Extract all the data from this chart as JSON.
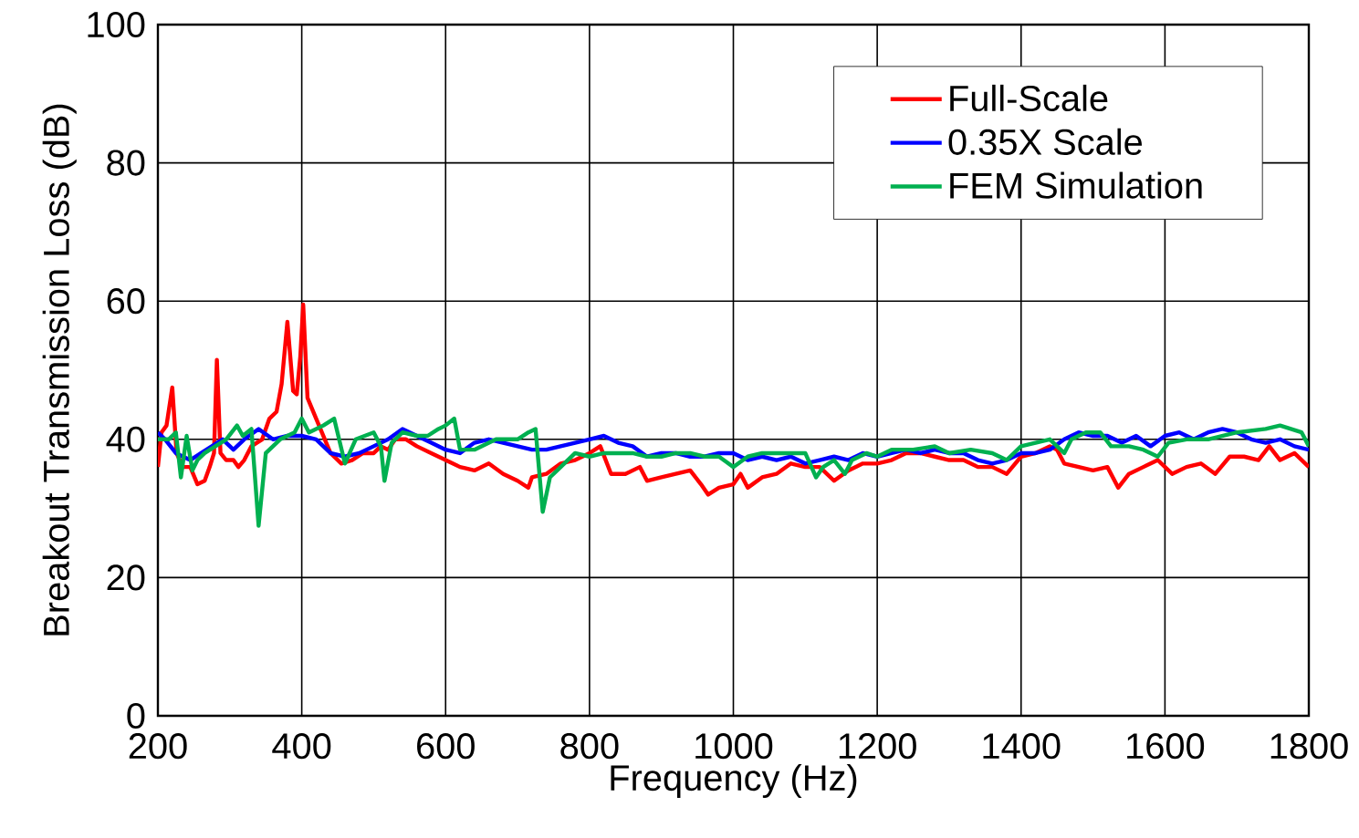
{
  "chart_data": {
    "type": "line",
    "xlabel": "Frequency (Hz)",
    "ylabel": "Breakout Transmission Loss (dB)",
    "xlim": [
      200,
      1800
    ],
    "ylim": [
      0,
      100
    ],
    "xticks": [
      200,
      400,
      600,
      800,
      1000,
      1200,
      1400,
      1600,
      1800
    ],
    "yticks": [
      0,
      20,
      40,
      60,
      80,
      100
    ],
    "grid": true,
    "legend": "top right",
    "marker": "none",
    "line_style": "solid",
    "series": [
      {
        "name": "Full-Scale",
        "color": "#ff0000",
        "x": [
          200,
          205,
          212,
          220,
          226,
          235,
          245,
          255,
          265,
          272,
          278,
          282,
          287,
          295,
          305,
          312,
          320,
          330,
          345,
          355,
          365,
          372,
          380,
          388,
          393,
          398,
          402,
          408,
          420,
          440,
          455,
          470,
          485,
          500,
          510,
          520,
          530,
          545,
          560,
          580,
          600,
          620,
          640,
          660,
          680,
          700,
          715,
          720,
          740,
          760,
          780,
          800,
          815,
          830,
          850,
          870,
          880,
          900,
          920,
          940,
          955,
          965,
          980,
          1000,
          1010,
          1020,
          1040,
          1060,
          1080,
          1100,
          1120,
          1140,
          1160,
          1180,
          1200,
          1220,
          1240,
          1260,
          1280,
          1300,
          1320,
          1340,
          1360,
          1380,
          1400,
          1420,
          1440,
          1450,
          1460,
          1480,
          1500,
          1520,
          1535,
          1550,
          1570,
          1590,
          1610,
          1630,
          1650,
          1670,
          1690,
          1710,
          1730,
          1745,
          1760,
          1780,
          1800
        ],
        "values": [
          36,
          41,
          42,
          47.5,
          38,
          36,
          36,
          33.5,
          34,
          36,
          38,
          51.5,
          38,
          37,
          37,
          36,
          37,
          39,
          40,
          43,
          44,
          48,
          57,
          47,
          46.5,
          52,
          59.5,
          46,
          43,
          38,
          36.5,
          37,
          38,
          38,
          39,
          38.5,
          40,
          40,
          39,
          38,
          37,
          36,
          35.5,
          36.5,
          35,
          34,
          33,
          34.5,
          35,
          36.5,
          37,
          38,
          39,
          35,
          35,
          36,
          34,
          34.5,
          35,
          35.5,
          33.5,
          32,
          33,
          33.5,
          35,
          33,
          34.5,
          35,
          36.5,
          36,
          36,
          34,
          35.5,
          36.5,
          36.5,
          37,
          38,
          38,
          37.5,
          37,
          37,
          36,
          36,
          35,
          37.5,
          38,
          39,
          38.5,
          36.5,
          36,
          35.5,
          36,
          33,
          35,
          36,
          37,
          35,
          36,
          36.5,
          35,
          37.5,
          37.5,
          37,
          39,
          37,
          38,
          36
        ]
      },
      {
        "name": "0.35X Scale",
        "color": "#0000ff",
        "x": [
          200,
          210,
          225,
          245,
          260,
          275,
          290,
          305,
          320,
          340,
          360,
          380,
          400,
          420,
          440,
          460,
          480,
          500,
          520,
          540,
          560,
          580,
          600,
          620,
          640,
          660,
          680,
          700,
          720,
          740,
          760,
          780,
          800,
          820,
          840,
          860,
          880,
          900,
          920,
          940,
          960,
          980,
          1000,
          1020,
          1040,
          1060,
          1080,
          1100,
          1120,
          1140,
          1160,
          1180,
          1200,
          1220,
          1240,
          1260,
          1280,
          1300,
          1320,
          1340,
          1360,
          1380,
          1400,
          1420,
          1440,
          1460,
          1480,
          1500,
          1520,
          1540,
          1560,
          1580,
          1600,
          1620,
          1640,
          1660,
          1680,
          1700,
          1720,
          1740,
          1760,
          1780,
          1800
        ],
        "values": [
          41,
          40,
          38,
          37,
          38,
          39,
          40,
          38.5,
          40,
          41.5,
          40,
          40.5,
          40.5,
          40,
          38,
          37.5,
          38,
          39,
          40,
          41.5,
          40.5,
          39.5,
          38.5,
          38,
          39.5,
          40,
          39.5,
          39,
          38.5,
          38.5,
          39,
          39.5,
          40,
          40.5,
          39.5,
          39,
          37.5,
          38,
          38,
          37.5,
          37.5,
          38,
          38,
          37,
          37.5,
          37,
          37.5,
          36.5,
          37,
          37.5,
          37,
          38,
          37.5,
          38,
          38.5,
          38,
          38.5,
          38,
          38,
          37,
          36.5,
          37,
          38,
          38,
          38.5,
          40,
          41,
          40.5,
          40.5,
          39.5,
          40.5,
          39,
          40.5,
          41,
          40,
          41,
          41.5,
          41,
          40,
          39.5,
          40,
          39,
          38.5
        ]
      },
      {
        "name": "FEM Simulation",
        "color": "#00b050",
        "x": [
          200,
          215,
          225,
          232,
          240,
          248,
          255,
          265,
          280,
          295,
          310,
          318,
          330,
          340,
          350,
          370,
          390,
          400,
          410,
          430,
          445,
          460,
          475,
          500,
          510,
          515,
          525,
          540,
          560,
          575,
          590,
          600,
          612,
          620,
          640,
          670,
          700,
          715,
          725,
          735,
          745,
          760,
          780,
          800,
          820,
          840,
          860,
          880,
          900,
          920,
          940,
          960,
          980,
          1000,
          1020,
          1040,
          1060,
          1080,
          1100,
          1115,
          1125,
          1140,
          1155,
          1165,
          1185,
          1200,
          1220,
          1250,
          1280,
          1300,
          1330,
          1360,
          1380,
          1400,
          1420,
          1440,
          1460,
          1470,
          1490,
          1510,
          1525,
          1550,
          1570,
          1590,
          1605,
          1630,
          1660,
          1700,
          1740,
          1760,
          1790,
          1800
        ],
        "values": [
          40,
          40,
          41,
          34.5,
          40.5,
          35.5,
          37,
          38,
          39,
          40,
          42,
          40.5,
          41.5,
          27.5,
          38,
          40,
          41,
          43,
          41,
          42,
          43,
          36.5,
          40,
          41,
          39,
          34,
          39.5,
          41,
          40.5,
          40.5,
          41.5,
          42,
          43,
          38.5,
          38.5,
          40,
          40,
          41,
          41.5,
          29.5,
          34.5,
          36,
          38,
          37.5,
          38,
          38,
          38,
          37.5,
          37.5,
          38,
          38,
          37.5,
          37.5,
          36,
          37.5,
          38,
          38,
          38,
          38,
          34.5,
          36,
          37,
          35,
          37,
          38,
          37.5,
          38.5,
          38.5,
          39,
          38,
          38.5,
          38,
          37,
          39,
          39.5,
          40,
          38,
          40,
          41,
          41,
          39,
          39,
          38.5,
          37.5,
          39.5,
          40,
          40,
          41,
          41.5,
          42,
          41,
          39
        ]
      }
    ]
  }
}
